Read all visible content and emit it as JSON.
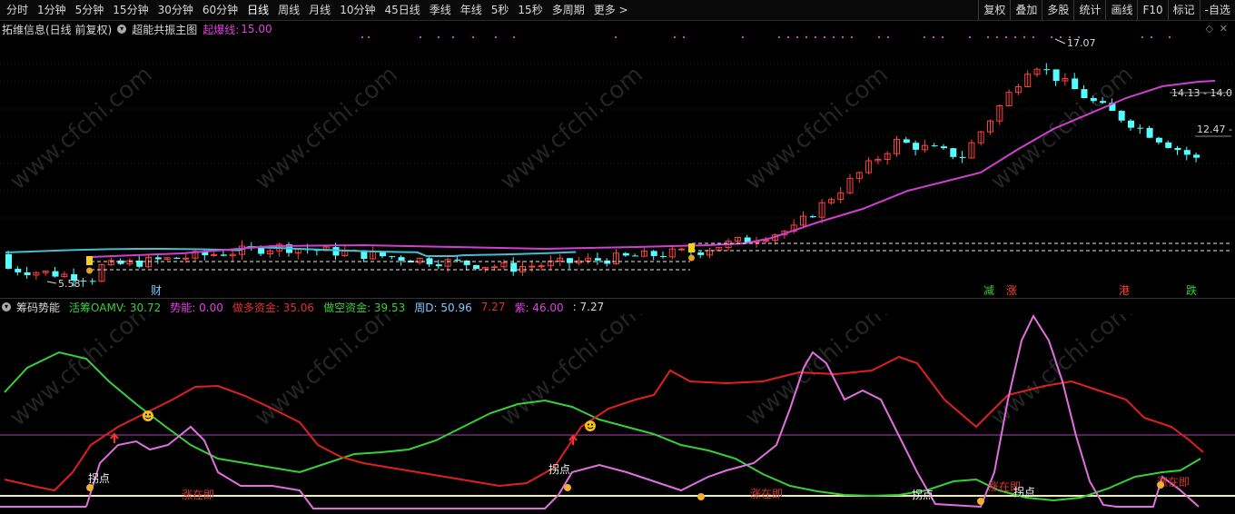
{
  "toolbar": {
    "periods": [
      "分时",
      "1分钟",
      "5分钟",
      "15分钟",
      "30分钟",
      "60分钟",
      "日线",
      "周线",
      "月线",
      "10分钟",
      "45日线",
      "季线",
      "年线",
      "5秒",
      "15秒",
      "多周期",
      "更多 >"
    ],
    "active_period": "日线",
    "right_items": [
      "复权",
      "叠加",
      "多股",
      "统计",
      "画线",
      "F10",
      "标记",
      "-自选"
    ]
  },
  "main_panel": {
    "info_label": "拓维信息(日线 前复权)",
    "indicator_name": "超能共振主图",
    "indicator_label": "起爆线:",
    "indicator_value": "15.00",
    "high_label": "17.07",
    "low_label": "5.58",
    "price_tag_1": "14.13 - 14.0",
    "price_tag_2": "12.47 -",
    "markers": [
      "财",
      "减",
      "涨",
      "港",
      "跌"
    ]
  },
  "sub_panel": {
    "name": "筹码势能",
    "items": [
      {
        "label": "活筹OAMV:",
        "value": "30.72",
        "color": "#38d038"
      },
      {
        "label": "势能:",
        "value": "0.00",
        "color": "#e040e0"
      },
      {
        "label": "做多资金:",
        "value": "35.06",
        "color": "#e03030"
      },
      {
        "label": "做空资金:",
        "value": "39.53",
        "color": "#38d038"
      },
      {
        "label": "周D:",
        "value": "50.96",
        "color": "#80c8ff"
      },
      {
        "label": "",
        "value": "7.27",
        "color": "#e03030"
      },
      {
        "label": "紫:",
        "value": "46.00",
        "color": "#e040e0"
      },
      {
        "label": ":",
        "value": "7.27",
        "color": "#d8d8d8"
      }
    ],
    "annotations": [
      "拐点",
      "涨在即",
      "拐点",
      "涨在即",
      "拐点",
      "涨在即",
      "拐点",
      "涨在即"
    ]
  },
  "watermark": "www.cfchi.com",
  "colors": {
    "up": "#ff4040",
    "down": "#54ffff",
    "ma_magenta": "#d040d0",
    "ma_cyan": "#40c0d0",
    "green_line": "#38d038",
    "red_line": "#e02020",
    "pink_line": "#e070e0",
    "yellow_line": "#f0f0a0"
  }
}
